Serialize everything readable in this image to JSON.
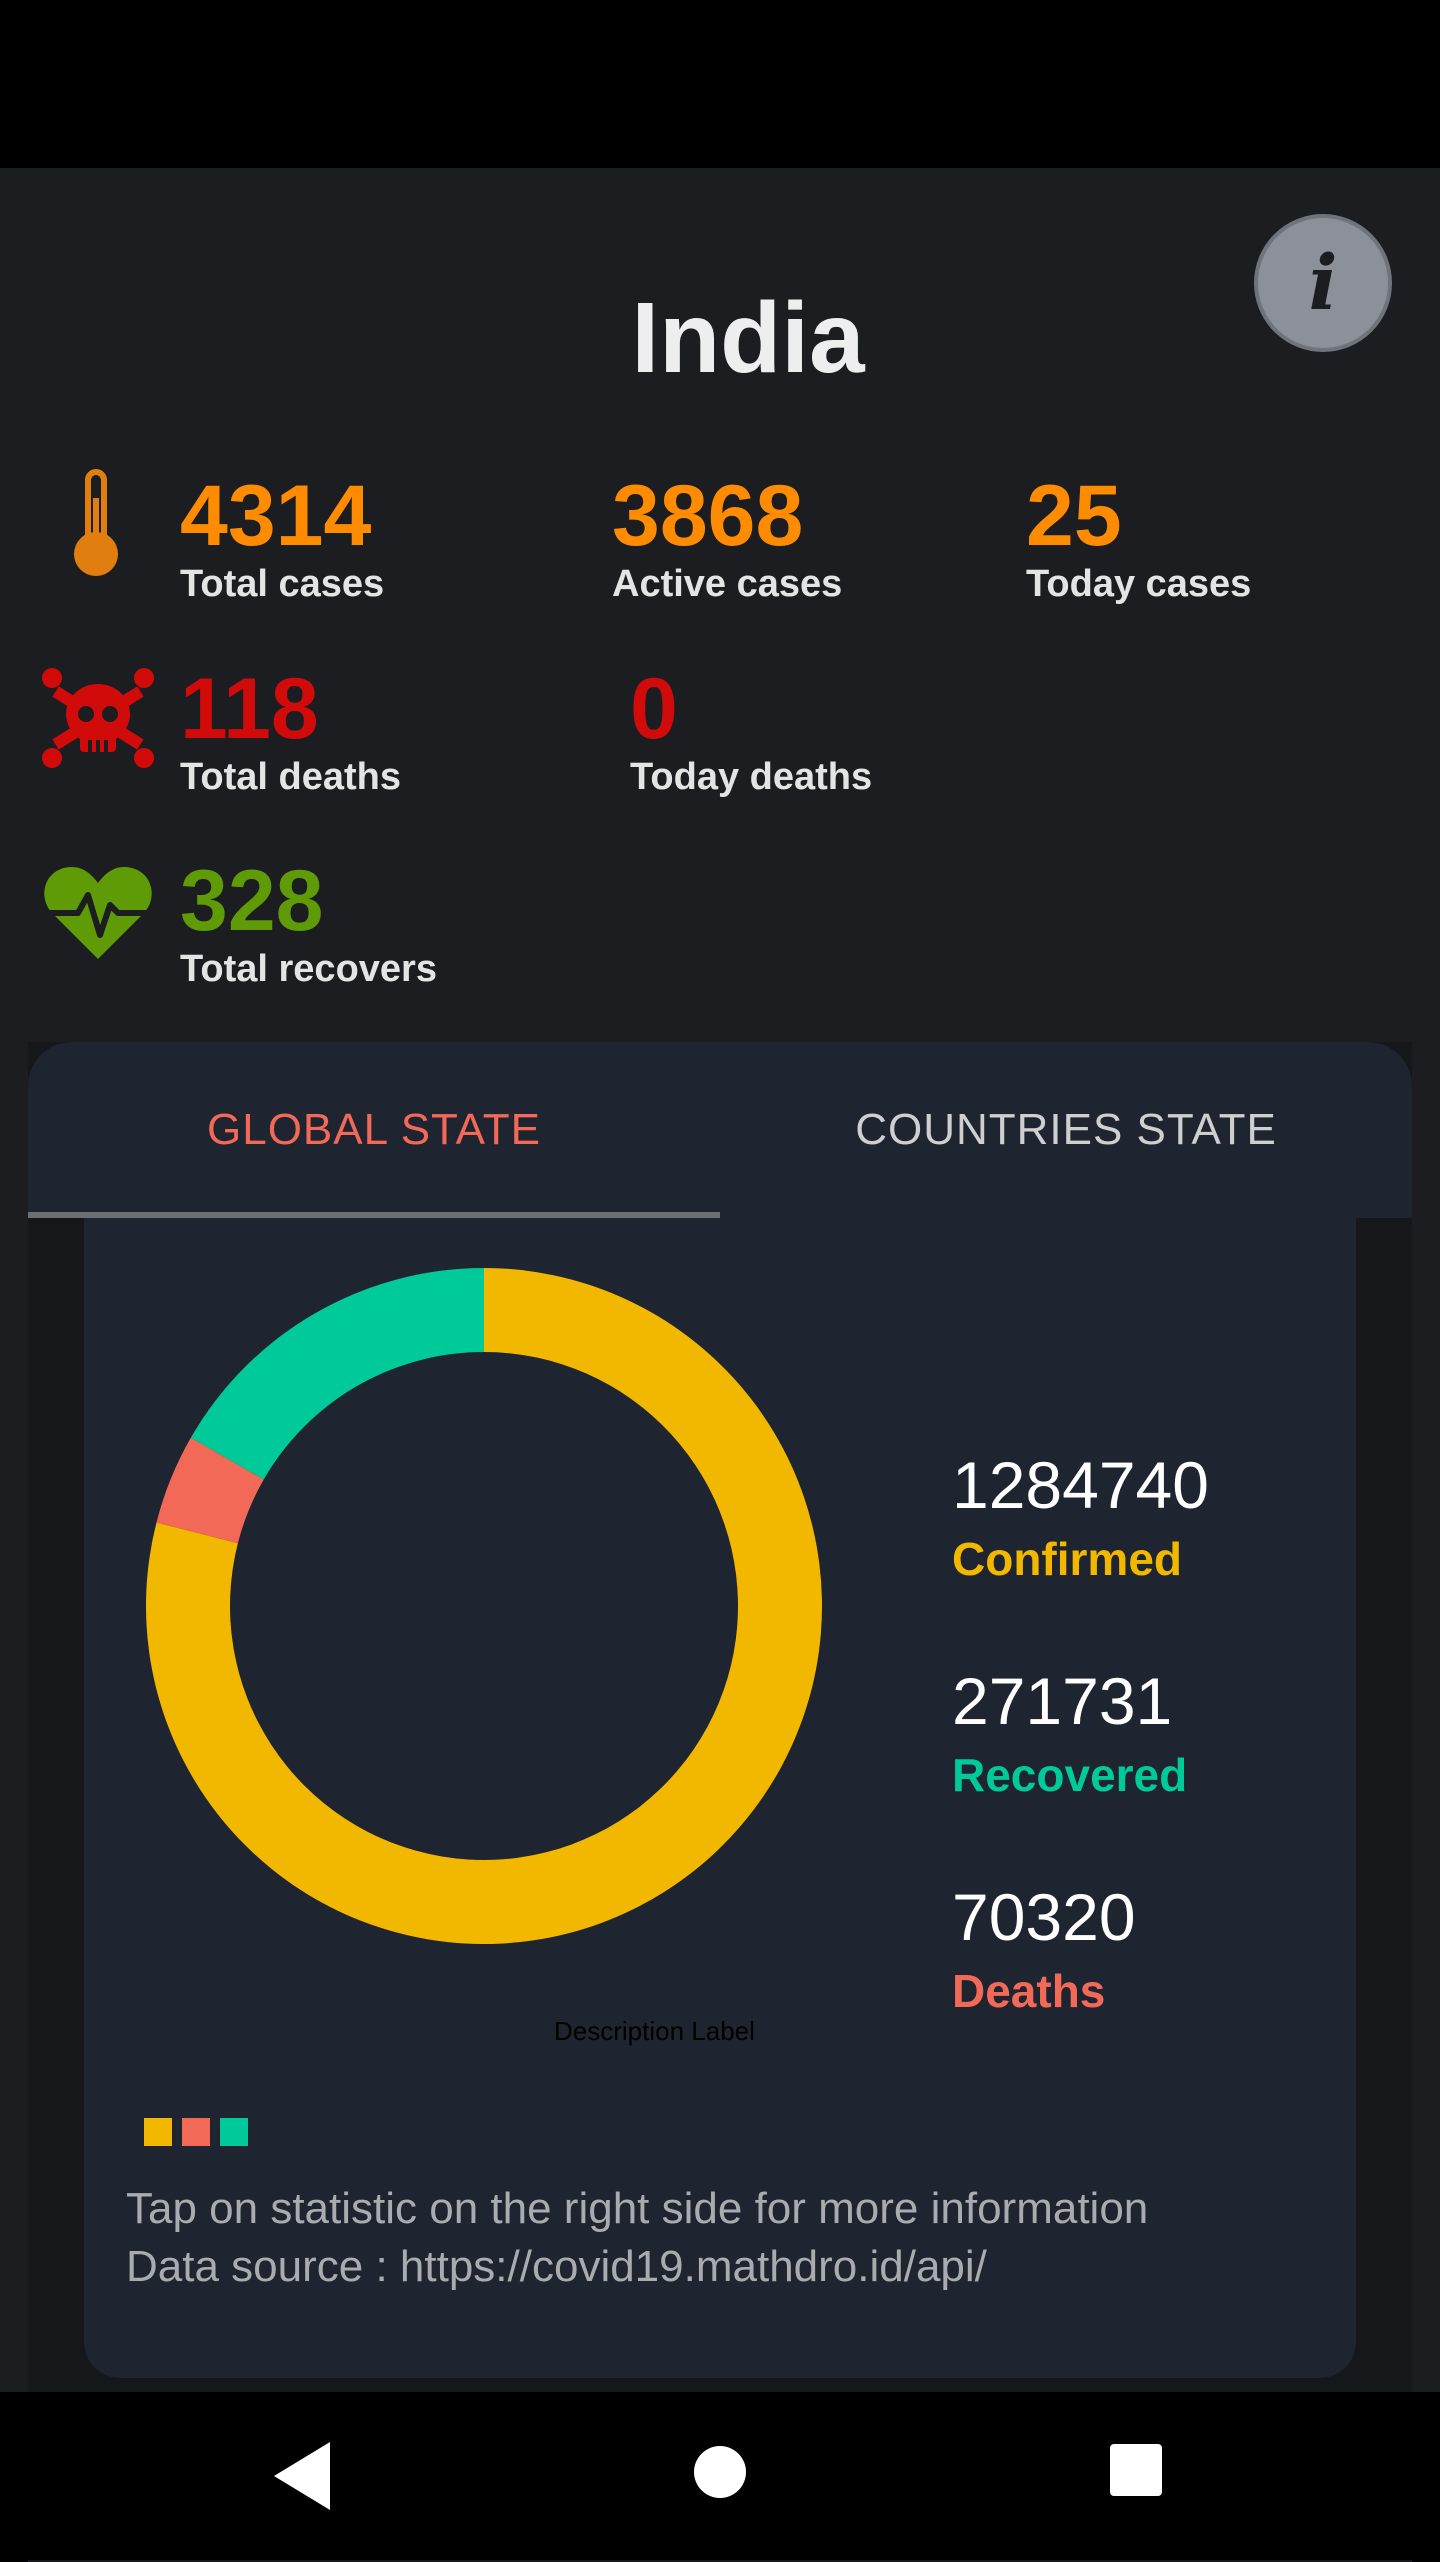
{
  "country": "India",
  "info_button": {
    "label": "i",
    "icon": "info-icon"
  },
  "stats": {
    "total_cases": {
      "value": "4314",
      "label": "Total cases",
      "icon": "thermometer-icon"
    },
    "active_cases": {
      "value": "3868",
      "label": "Active cases"
    },
    "today_cases": {
      "value": "25",
      "label": "Today cases"
    },
    "total_deaths": {
      "value": "118",
      "label": "Total deaths",
      "icon": "skull-icon"
    },
    "today_deaths": {
      "value": "0",
      "label": "Today deaths"
    },
    "total_recovers": {
      "value": "328",
      "label": "Total recovers",
      "icon": "heartbeat-icon"
    }
  },
  "colors": {
    "orange": "#ff8c00",
    "red": "#d10a0a",
    "green": "#5f9a07",
    "confirmed": "#f2b800",
    "recovered": "#00c99a",
    "deaths": "#f26a57"
  },
  "tabs": [
    {
      "label": "GLOBAL STATE",
      "active": true
    },
    {
      "label": "COUNTRIES STATE",
      "active": false
    }
  ],
  "global": {
    "confirmed": {
      "value": "1284740",
      "label": "Confirmed"
    },
    "recovered": {
      "value": "271731",
      "label": "Recovered"
    },
    "deaths": {
      "value": "70320",
      "label": "Deaths"
    },
    "description_label": "Description Label",
    "hint_line1": "Tap on statistic on the right side for more information",
    "hint_line2": "Data source : https://covid19.mathdro.id/api/"
  },
  "chart_data": {
    "type": "pie",
    "style": "donut",
    "categories": [
      "Confirmed",
      "Deaths",
      "Recovered"
    ],
    "values": [
      1284740,
      70320,
      271731
    ],
    "colors": [
      "#f2b800",
      "#f26a57",
      "#00c99a"
    ],
    "legend": "bottom-left"
  },
  "nav": {
    "back_icon": "back-triangle-icon",
    "home_icon": "home-circle-icon",
    "recents_icon": "recents-square-icon"
  }
}
